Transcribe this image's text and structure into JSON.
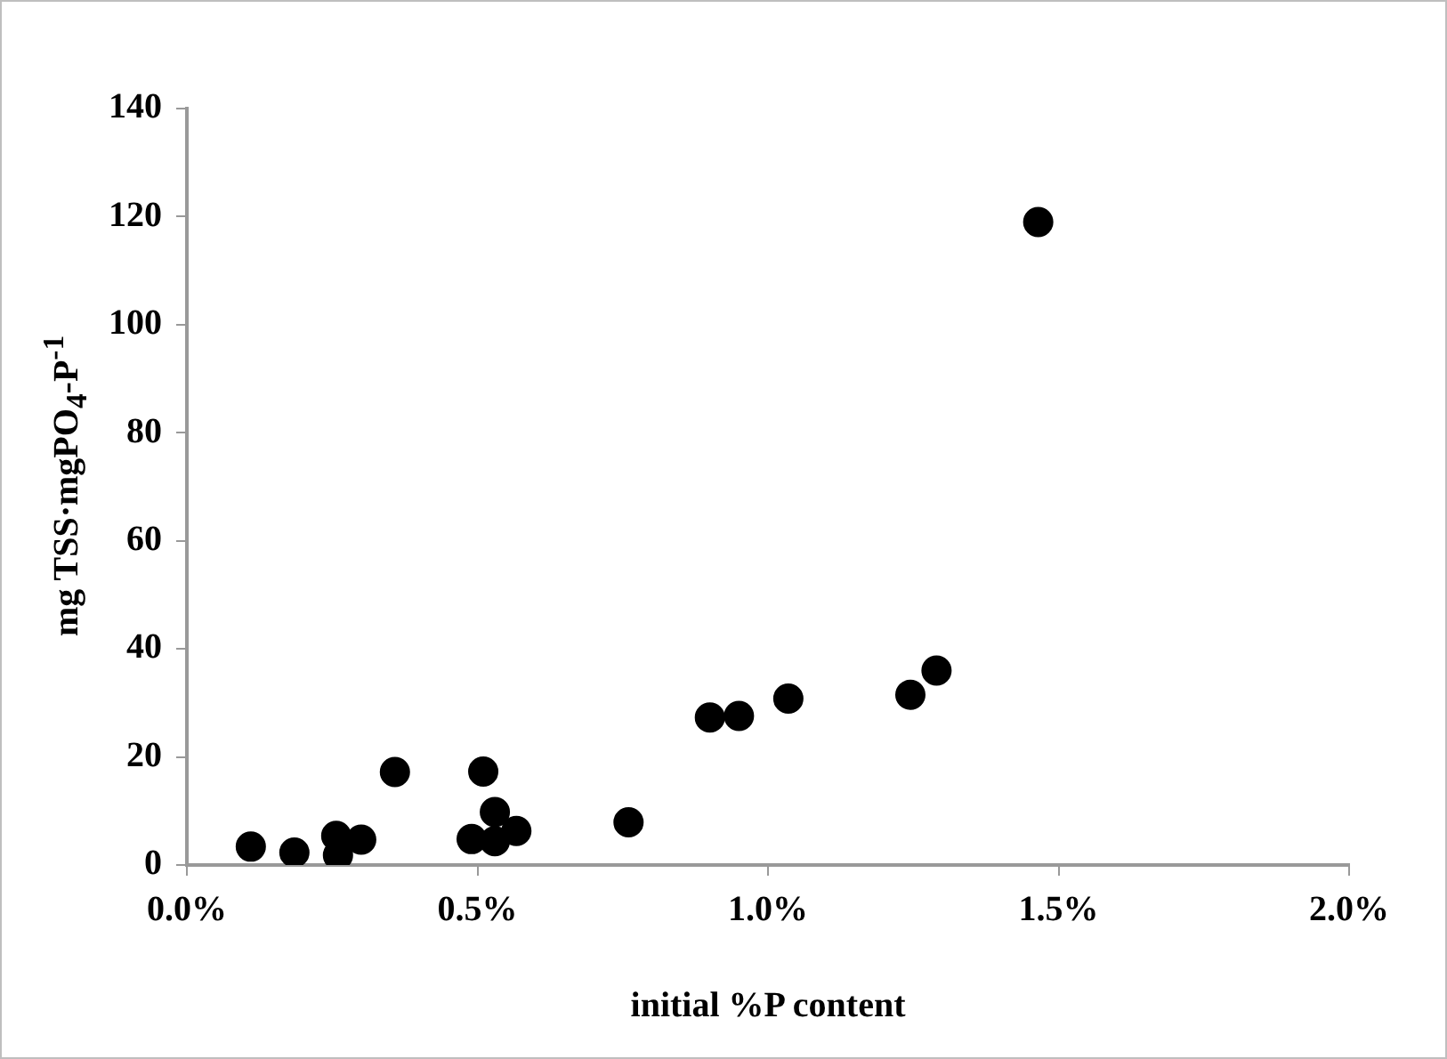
{
  "chart_data": {
    "type": "scatter",
    "xlabel": "initial %P content",
    "ylabel": "mg TSS·mgPO$_{4}$-P$^{-1}$",
    "x": [
      0.11,
      0.185,
      0.257,
      0.26,
      0.3,
      0.358,
      0.49,
      0.51,
      0.53,
      0.53,
      0.567,
      0.76,
      0.9,
      0.95,
      1.035,
      1.245,
      1.29,
      1.465
    ],
    "series": [
      {
        "color": "#000000",
        "values": [
          3.4,
          2.3,
          5.4,
          1.8,
          4.7,
          17.2,
          4.8,
          17.3,
          9.8,
          4.4,
          6.3,
          7.9,
          27.3,
          27.6,
          30.8,
          31.5,
          36,
          119
        ]
      }
    ],
    "xlim": [
      0,
      2
    ],
    "xticks": [
      {
        "value": 0,
        "label": "0.0%"
      },
      {
        "value": 0.5,
        "label": "0.5%"
      },
      {
        "value": 1,
        "label": "1.0%"
      },
      {
        "value": 1.5,
        "label": "1.5%"
      },
      {
        "value": 2,
        "label": "2.0%"
      }
    ],
    "ylim": [
      0,
      140
    ],
    "yticks": [
      0,
      20,
      40,
      60,
      80,
      100,
      120,
      140
    ],
    "grid": false,
    "legend": false,
    "marker": "circle"
  }
}
